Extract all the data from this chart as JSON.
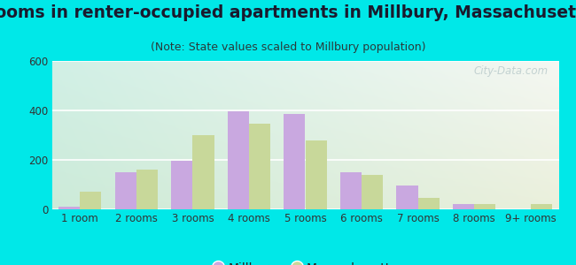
{
  "title": "Rooms in renter-occupied apartments in Millbury, Massachusetts",
  "subtitle": "(Note: State values scaled to Millbury population)",
  "categories": [
    "1 room",
    "2 rooms",
    "3 rooms",
    "4 rooms",
    "5 rooms",
    "6 rooms",
    "7 rooms",
    "8 rooms",
    "9+ rooms"
  ],
  "millbury": [
    10,
    150,
    197,
    395,
    385,
    150,
    97,
    20,
    0
  ],
  "massachusetts": [
    70,
    160,
    300,
    345,
    280,
    140,
    47,
    20,
    20
  ],
  "millbury_color": "#c9a8e0",
  "massachusetts_color": "#c8d89a",
  "background_color": "#00e8e8",
  "ylim": [
    0,
    600
  ],
  "yticks": [
    0,
    200,
    400,
    600
  ],
  "bar_width": 0.38,
  "legend_millbury": "Millbury",
  "legend_massachusetts": "Massachusetts",
  "title_fontsize": 13.5,
  "subtitle_fontsize": 9,
  "tick_fontsize": 8.5,
  "watermark": "City-Data.com"
}
